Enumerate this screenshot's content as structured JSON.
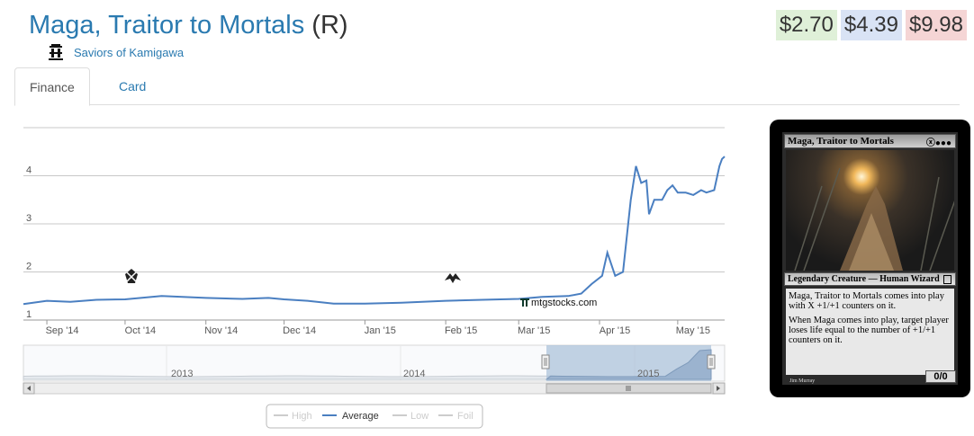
{
  "card": {
    "name": "Maga, Traitor to Mortals",
    "rarity": "(R)",
    "set_name": "Saviors of Kamigawa",
    "mana_cost": "XBBB"
  },
  "prices": {
    "low": "$2.70",
    "average": "$4.39",
    "high": "$9.98"
  },
  "colors": {
    "link": "#2a7ab0",
    "series_average": "#4a7fc1",
    "price_low_bg": "#dff0d8",
    "price_avg_bg": "#d9e3f5",
    "price_high_bg": "#f5d5d5"
  },
  "tabs": [
    {
      "label": "Finance",
      "active": true
    },
    {
      "label": "Card",
      "active": false
    }
  ],
  "watermark": "mtgstocks.com",
  "navigator": {
    "year_labels": [
      "2013",
      "2014",
      "2015"
    ]
  },
  "legend": [
    {
      "label": "High",
      "active": false
    },
    {
      "label": "Average",
      "active": true
    },
    {
      "label": "Low",
      "active": false
    },
    {
      "label": "Foil",
      "active": false
    }
  ],
  "chart_data": {
    "type": "line",
    "title": "",
    "xlabel": "",
    "ylabel": "",
    "ylim": [
      1,
      5
    ],
    "y_ticks": [
      "1",
      "2",
      "3",
      "4"
    ],
    "x_ticks": [
      "Sep '14",
      "Oct '14",
      "Nov '14",
      "Dec '14",
      "Jan '15",
      "Feb '15",
      "Mar '15",
      "Apr '15",
      "May '15"
    ],
    "grid": true,
    "legend_position": "bottom-center",
    "series": [
      {
        "name": "Average",
        "x": [
          "2014-08-23",
          "2014-09-01",
          "2014-09-10",
          "2014-09-20",
          "2014-10-01",
          "2014-10-15",
          "2014-11-01",
          "2014-11-15",
          "2014-11-25",
          "2014-12-01",
          "2014-12-10",
          "2014-12-20",
          "2015-01-01",
          "2015-01-15",
          "2015-02-01",
          "2015-02-15",
          "2015-03-01",
          "2015-03-10",
          "2015-03-20",
          "2015-03-25",
          "2015-03-29",
          "2015-04-02",
          "2015-04-04",
          "2015-04-07",
          "2015-04-10",
          "2015-04-13",
          "2015-04-15",
          "2015-04-17",
          "2015-04-19",
          "2015-04-20",
          "2015-04-22",
          "2015-04-25",
          "2015-04-27",
          "2015-04-29",
          "2015-05-01",
          "2015-05-04",
          "2015-05-07",
          "2015-05-10",
          "2015-05-12",
          "2015-05-15",
          "2015-05-17",
          "2015-05-18",
          "2015-05-19"
        ],
        "values": [
          1.33,
          1.4,
          1.38,
          1.42,
          1.43,
          1.5,
          1.46,
          1.44,
          1.46,
          1.43,
          1.4,
          1.34,
          1.34,
          1.36,
          1.4,
          1.42,
          1.44,
          1.48,
          1.5,
          1.55,
          1.75,
          1.92,
          2.4,
          1.92,
          2.0,
          3.5,
          4.2,
          3.85,
          3.9,
          3.2,
          3.5,
          3.5,
          3.7,
          3.8,
          3.65,
          3.65,
          3.6,
          3.7,
          3.65,
          3.7,
          4.2,
          4.35,
          4.4
        ]
      }
    ]
  }
}
